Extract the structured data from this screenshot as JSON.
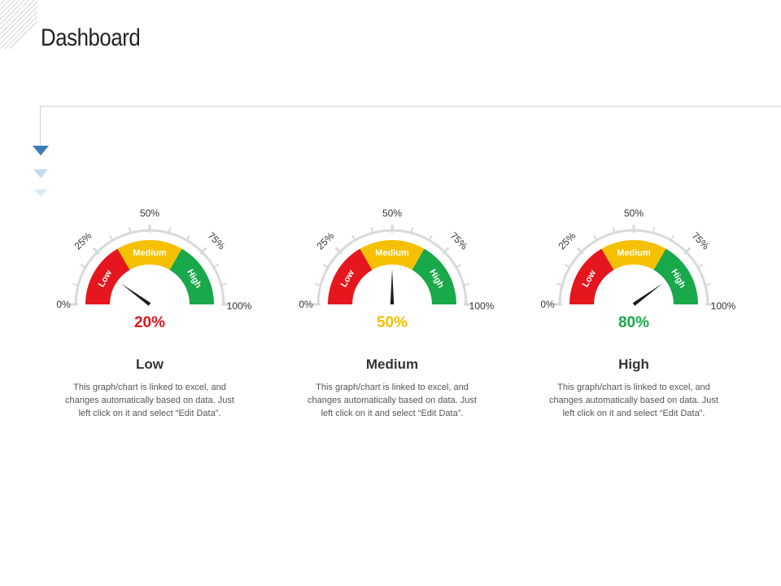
{
  "page": {
    "title": "Dashboard"
  },
  "colors": {
    "low": "#e5161e",
    "medium": "#f5c000",
    "high": "#19a84a",
    "scale": "#d9d9d9",
    "needle": "#1a1a1a",
    "accent": "#3d7ab8"
  },
  "icons": {
    "corner": "diagonal-hatch-icon",
    "chevrons": "chevron-down-icon"
  },
  "band_labels": [
    "Low",
    "Medium",
    "High"
  ],
  "scale_labels": [
    "0%",
    "25%",
    "50%",
    "75%",
    "100%"
  ],
  "chart_data": [
    {
      "type": "gauge",
      "value": 20,
      "value_label": "20%",
      "range": [
        0,
        100
      ],
      "bands": [
        {
          "name": "Low",
          "from": 0,
          "to": 33.3
        },
        {
          "name": "Medium",
          "from": 33.3,
          "to": 66.7
        },
        {
          "name": "High",
          "from": 66.7,
          "to": 100
        }
      ],
      "value_color": "#e5161e",
      "label": "Low",
      "description": "This graph/chart is linked to excel, and changes automatically based on data. Just left click on it and select “Edit Data”."
    },
    {
      "type": "gauge",
      "value": 50,
      "value_label": "50%",
      "range": [
        0,
        100
      ],
      "bands": [
        {
          "name": "Low",
          "from": 0,
          "to": 33.3
        },
        {
          "name": "Medium",
          "from": 33.3,
          "to": 66.7
        },
        {
          "name": "High",
          "from": 66.7,
          "to": 100
        }
      ],
      "value_color": "#f5c000",
      "label": "Medium",
      "description": "This graph/chart is linked to excel, and changes automatically based on data. Just left click on it and select “Edit Data”."
    },
    {
      "type": "gauge",
      "value": 80,
      "value_label": "80%",
      "range": [
        0,
        100
      ],
      "bands": [
        {
          "name": "Low",
          "from": 0,
          "to": 33.3
        },
        {
          "name": "Medium",
          "from": 33.3,
          "to": 66.7
        },
        {
          "name": "High",
          "from": 66.7,
          "to": 100
        }
      ],
      "value_color": "#19a84a",
      "label": "High",
      "description": "This graph/chart is linked to excel, and changes automatically based on data. Just left click on it and select “Edit Data”."
    }
  ]
}
